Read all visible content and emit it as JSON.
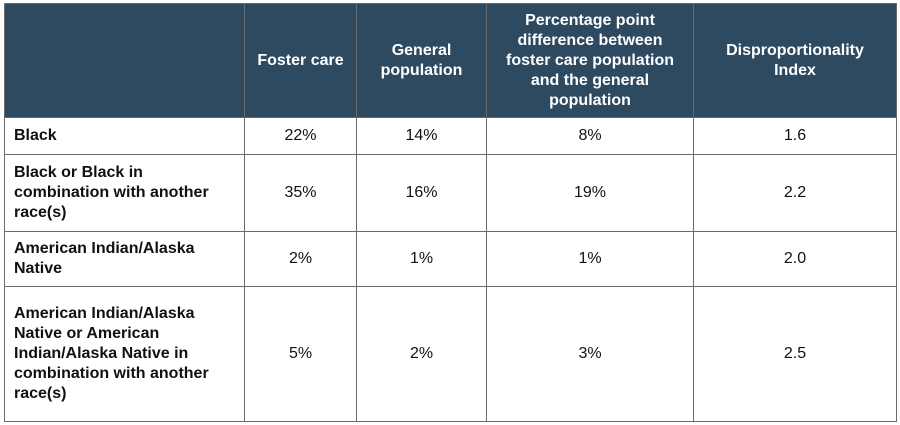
{
  "table": {
    "headers": [
      "",
      "Foster care",
      "General population",
      "Percentage point difference between foster care population and the general population",
      "Disproportionality Index"
    ],
    "rows": [
      {
        "label": "Black",
        "foster_care": "22%",
        "general_population": "14%",
        "percentage_point_difference": "8%",
        "disproportionality_index": "1.6"
      },
      {
        "label": "Black or Black in combination with another race(s)",
        "foster_care": "35%",
        "general_population": "16%",
        "percentage_point_difference": "19%",
        "disproportionality_index": "2.2"
      },
      {
        "label": "American Indian/Alaska Native",
        "foster_care": "2%",
        "general_population": "1%",
        "percentage_point_difference": "1%",
        "disproportionality_index": "2.0"
      },
      {
        "label": "American Indian/Alaska Native or American Indian/Alaska Native in combination with another race(s)",
        "foster_care": "5%",
        "general_population": "2%",
        "percentage_point_difference": "3%",
        "disproportionality_index": "2.5"
      }
    ]
  },
  "colors": {
    "header_background": "#2e4a61",
    "header_text": "#ffffff",
    "border": "#6b6b6b"
  }
}
